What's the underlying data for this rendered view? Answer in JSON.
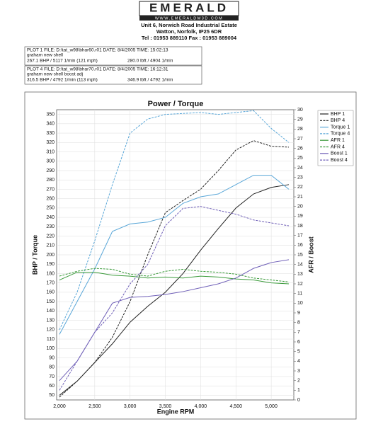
{
  "header": {
    "brand": "EMERALD",
    "website": "WWW.EMERALDM3D.COM",
    "address1": "Unit 6, Norwich Road Industrial Estate",
    "address2": "Watton, Norfolk, IP25 6DR",
    "phone": "Tel : 01953 889110   Fax : 01953 889004"
  },
  "plots": [
    {
      "line1": "PLOT 1 FILE: D:\\tat_w98\\bhar60.r01  DATE: 8/4/2005  TIME: 15:02:13",
      "line2": "graham new shell",
      "power": "267.1 BHP / 5117 1/min (121 mph)",
      "torque": "280.0 lbft / 4904 1/min"
    },
    {
      "line1": "PLOT 4 FILE: D:\\tat_w98\\bhar70.r01  DATE: 8/4/2005  TIME: 16:12:31",
      "line2": "graham new shell boost adj",
      "power": "316.5 BHP / 4792 1/min (113 mph)",
      "torque": "346.9 lbft / 4792 1/min"
    }
  ],
  "chart_data": {
    "type": "line",
    "title": "Power / Torque",
    "x_label": "Engine RPM",
    "y_label": "BHP / Torque",
    "y2_label": "AFR / Boost",
    "grid": true,
    "x": [
      2000,
      2250,
      2500,
      2750,
      3000,
      3250,
      3500,
      3750,
      4000,
      4250,
      4500,
      4750,
      5000,
      5250
    ],
    "xlim": [
      1960,
      5320
    ],
    "xticks": [
      {
        "value": 2000,
        "label": "2,000"
      },
      {
        "value": 2500,
        "label": "2,500"
      },
      {
        "value": 3000,
        "label": "3,000"
      },
      {
        "value": 3500,
        "label": "3,500"
      },
      {
        "value": 4000,
        "label": "4,000"
      },
      {
        "value": 4500,
        "label": "4,500"
      },
      {
        "value": 5000,
        "label": "5,000"
      }
    ],
    "ylim": [
      45,
      355
    ],
    "yticks": [
      50,
      60,
      70,
      80,
      90,
      100,
      110,
      120,
      130,
      140,
      150,
      160,
      170,
      180,
      190,
      200,
      210,
      220,
      230,
      240,
      250,
      260,
      270,
      280,
      290,
      300,
      310,
      320,
      330,
      340,
      350
    ],
    "y2lim": [
      0,
      30
    ],
    "y2ticks": [
      0,
      1,
      2,
      3,
      4,
      5,
      6,
      7,
      8,
      9,
      10,
      11,
      12,
      13,
      14,
      15,
      16,
      17,
      18,
      19,
      20,
      21,
      22,
      23,
      24,
      25,
      26,
      27,
      28,
      29,
      30
    ],
    "series": [
      {
        "name": "BHP 1",
        "color": "#222222",
        "style": "solid",
        "values": [
          50,
          65,
          85,
          105,
          128,
          145,
          160,
          180,
          205,
          228,
          250,
          265,
          272,
          275
        ]
      },
      {
        "name": "BHP 4",
        "color": "#222222",
        "style": "dashed",
        "values": [
          48,
          65,
          85,
          112,
          150,
          200,
          245,
          258,
          270,
          290,
          312,
          322,
          316,
          315
        ]
      },
      {
        "name": "Torque 1",
        "color": "#5aa7d8",
        "style": "solid",
        "values": [
          115,
          150,
          185,
          225,
          233,
          235,
          240,
          255,
          262,
          265,
          275,
          285,
          285,
          270
        ]
      },
      {
        "name": "Torque 4",
        "color": "#5aa7d8",
        "style": "dashed",
        "values": [
          120,
          160,
          215,
          275,
          330,
          345,
          350,
          351,
          352,
          350,
          352,
          354,
          335,
          320
        ]
      },
      {
        "name": "AFR 1",
        "color": "#3a9a3a",
        "style": "solid",
        "axis": "y2",
        "values": [
          12.4,
          13.2,
          13.2,
          12.9,
          12.8,
          12.6,
          12.7,
          12.6,
          12.8,
          12.7,
          12.5,
          12.4,
          12.1,
          12.0
        ]
      },
      {
        "name": "AFR 4",
        "color": "#3a9a3a",
        "style": "dashed",
        "axis": "y2",
        "values": [
          12.8,
          13.3,
          13.6,
          13.5,
          13.0,
          12.8,
          13.3,
          13.5,
          13.3,
          13.2,
          13.0,
          12.6,
          12.4,
          12.2
        ]
      },
      {
        "name": "Boost 1",
        "color": "#7060b8",
        "style": "solid",
        "axis": "y2",
        "values": [
          2,
          4,
          7,
          10,
          10.6,
          10.7,
          10.9,
          11.2,
          11.6,
          12.0,
          12.6,
          13.6,
          14.2,
          14.5
        ]
      },
      {
        "name": "Boost 4",
        "color": "#7060b8",
        "style": "dashed",
        "axis": "y2",
        "values": [
          1,
          4,
          7,
          9,
          12,
          14,
          18,
          19.8,
          20,
          19.6,
          19.2,
          18.6,
          18.3,
          18.0
        ]
      }
    ]
  }
}
